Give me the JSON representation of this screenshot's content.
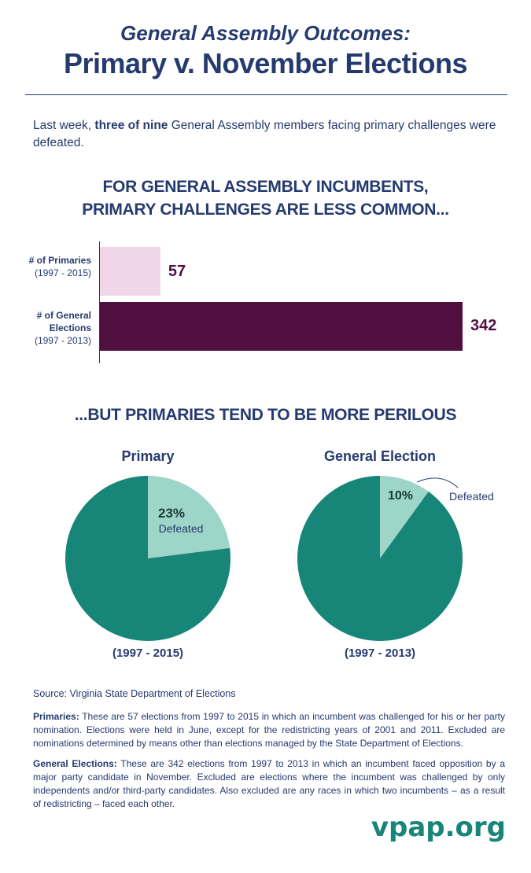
{
  "title_line1": "General Assembly Outcomes:",
  "title_line2": "Primary v. November Elections",
  "intro": {
    "pre": "Last week, ",
    "bold": "three of nine",
    "post": " General Assembly members facing primary challenges were defeated."
  },
  "heading1_line1": "FOR GENERAL ASSEMBLY INCUMBENTS,",
  "heading1_line2": "PRIMARY CHALLENGES ARE LESS COMMON...",
  "heading2": "...BUT PRIMARIES TEND TO BE MORE PERILOUS",
  "colors": {
    "navy": "#253a6e",
    "maroon": "#521040",
    "pink": "#f0d6e8",
    "teal": "#178577",
    "mint": "#9dd5c8"
  },
  "chart_data": [
    {
      "type": "bar",
      "orientation": "horizontal",
      "categories": [
        {
          "label": "# of Primaries",
          "range": "(1997 - 2015)"
        },
        {
          "label": "# of General Elections",
          "range": "(1997 - 2013)"
        }
      ],
      "values": [
        57,
        342
      ],
      "data_labels": [
        "57",
        "342"
      ],
      "bar_colors": [
        "#f0d6e8",
        "#521040"
      ]
    },
    {
      "type": "pie",
      "title": "Primary",
      "subtitle": "(1997 - 2015)",
      "slices": [
        {
          "label": "Defeated",
          "value": 23,
          "text": "23%",
          "color": "#9dd5c8"
        },
        {
          "value": 77,
          "color": "#178577"
        }
      ]
    },
    {
      "type": "pie",
      "title": "General Election",
      "subtitle": "(1997 - 2013)",
      "slices": [
        {
          "label": "Defeated",
          "value": 10,
          "text": "10%",
          "color": "#9dd5c8"
        },
        {
          "value": 90,
          "color": "#178577"
        }
      ]
    }
  ],
  "source": "Source: Virginia State Department of Elections",
  "notes": [
    {
      "bold": "Primaries:",
      "text": " These are 57 elections from 1997 to 2015 in which an incumbent was challenged for his or her party nomination. Elections were held in June, except for the redistricting years of 2001 and 2011. Excluded are nominations determined by means other than elections managed by the State Department of Elections."
    },
    {
      "bold": "General Elections:",
      "text": " These are 342 elections from 1997 to 2013 in which an incumbent faced opposition by a major party candidate in November. Excluded are elections where the incumbent was challenged by only independents and/or third-party candidates. Also excluded are any races in which two incumbents – as a result of redistricting – faced each other."
    }
  ],
  "logo": "vpap.org"
}
